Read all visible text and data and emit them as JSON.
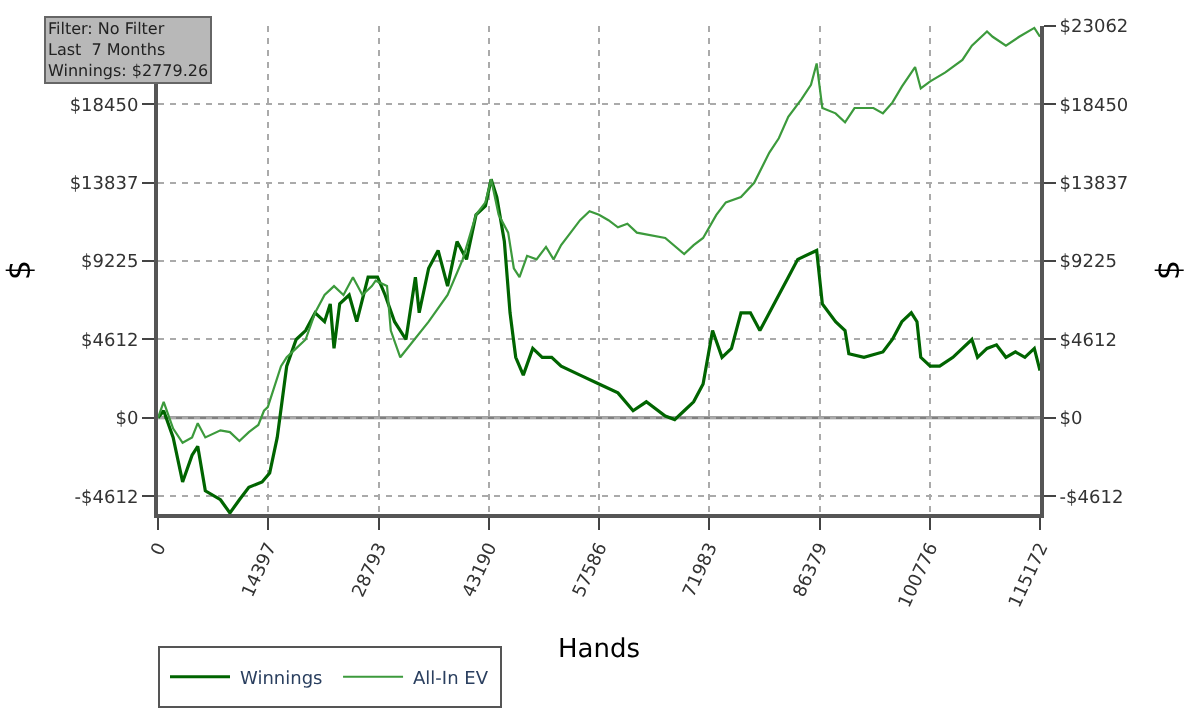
{
  "chart_data": {
    "type": "line",
    "xlabel": "Hands",
    "ylabel": "$",
    "y2label": "$",
    "annotations": [
      "Filter: No Filter",
      "Last  7 Months",
      "Winnings: $2779.26"
    ],
    "xlim": [
      0,
      115172
    ],
    "xticks": [
      0,
      14397,
      28793,
      43190,
      57586,
      71983,
      86379,
      100776,
      115172
    ],
    "ylim": [
      -5660,
      23062
    ],
    "yticks": [
      {
        "value": -4612,
        "label": "-$4612"
      },
      {
        "value": 0,
        "label": "$0"
      },
      {
        "value": 4612,
        "label": "$4612"
      },
      {
        "value": 9225,
        "label": "$9225"
      },
      {
        "value": 13837,
        "label": "$13837"
      },
      {
        "value": 18450,
        "label": "$18450"
      }
    ],
    "y2lim": [
      -5660,
      23062
    ],
    "y2ticks": [
      {
        "value": -4612,
        "label": "-$4612"
      },
      {
        "value": 0,
        "label": "$0"
      },
      {
        "value": 4612,
        "label": "$4612"
      },
      {
        "value": 9225,
        "label": "$9225"
      },
      {
        "value": 13837,
        "label": "$13837"
      },
      {
        "value": 18450,
        "label": "$18450"
      },
      {
        "value": 23062,
        "label": "$23062"
      }
    ],
    "grid": true,
    "legend": "bottom left",
    "marker": "none",
    "line_style": "solid",
    "ref_lines": [
      {
        "axis": "y",
        "value": 0,
        "color": "#808080"
      }
    ],
    "series": [
      {
        "name": "Winnings",
        "color": "#006400",
        "x": [
          0,
          741,
          1977,
          3213,
          4449,
          5190,
          6179,
          8156,
          9392,
          10628,
          11863,
          13593,
          14582,
          15570,
          16806,
          18042,
          19278,
          20513,
          21749,
          22491,
          22985,
          23726,
          24962,
          25951,
          27434,
          28669,
          29658,
          30894,
          32377,
          33612,
          34107,
          35342,
          36578,
          37814,
          39050,
          40285,
          41521,
          42757,
          43498,
          44240,
          45228,
          45970,
          46711,
          47700,
          48936,
          50171,
          51407,
          52643,
          55114,
          57586,
          60057,
          62035,
          63765,
          66236,
          67472,
          68708,
          69943,
          71179,
          72415,
          73651,
          74886,
          76122,
          77358,
          78594,
          81065,
          82301,
          83537,
          86008,
          86750,
          88480,
          89715,
          90210,
          92187,
          94658,
          95894,
          97130,
          98366,
          99107,
          99601,
          100837,
          102073,
          103803,
          105039,
          106275,
          107016,
          108252,
          109487,
          110723,
          111959,
          113194,
          114430,
          115172
        ],
        "values": [
          0,
          419,
          -1153,
          -3773,
          -2201,
          -1677,
          -4297,
          -4821,
          -5600,
          -4821,
          -4087,
          -3773,
          -3249,
          -1153,
          3039,
          4611,
          5135,
          6183,
          5659,
          6707,
          4087,
          6707,
          7231,
          5659,
          8279,
          8279,
          7231,
          5659,
          4611,
          8279,
          6183,
          8803,
          9851,
          7755,
          10375,
          9327,
          11947,
          12471,
          14043,
          12995,
          10375,
          6183,
          3563,
          2515,
          4087,
          3563,
          3563,
          3039,
          2515,
          1991,
          1467,
          419,
          943,
          105,
          -105,
          419,
          943,
          1991,
          5135,
          3563,
          4087,
          6183,
          6183,
          5135,
          7231,
          8279,
          9327,
          9851,
          6707,
          5659,
          5135,
          3773,
          3563,
          3878,
          4611,
          5659,
          6183,
          5659,
          3563,
          3039,
          3039,
          3563,
          4087,
          4611,
          3563,
          4087,
          4297,
          3563,
          3878,
          3563,
          4087,
          2779
        ]
      },
      {
        "name": "All-In EV",
        "color": "#3c9a3c",
        "x": [
          0,
          741,
          1977,
          3213,
          4449,
          5190,
          6179,
          8156,
          9392,
          10628,
          11863,
          13099,
          13840,
          14335,
          16065,
          16806,
          18042,
          19278,
          20513,
          21749,
          22985,
          24221,
          25456,
          26692,
          27928,
          28422,
          29905,
          30399,
          31635,
          35342,
          37814,
          39791,
          41521,
          42757,
          43498,
          44487,
          45723,
          46464,
          47206,
          48194,
          49430,
          50666,
          51654,
          52643,
          53879,
          55114,
          56350,
          57586,
          58822,
          60057,
          61293,
          62529,
          66236,
          68708,
          69943,
          71179,
          72909,
          74145,
          76122,
          77852,
          79829,
          81065,
          82301,
          84031,
          85267,
          86008,
          86750,
          88480,
          89715,
          90951,
          93423,
          94658,
          95894,
          97130,
          98860,
          99601,
          100837,
          102814,
          105039,
          106275,
          108252,
          108993,
          110723,
          112453,
          114430,
          115172
        ],
        "values": [
          0,
          943,
          -629,
          -1467,
          -1153,
          -314,
          -1153,
          -734,
          -838,
          -1362,
          -838,
          -419,
          419,
          629,
          3039,
          3563,
          4087,
          4611,
          6183,
          7231,
          7755,
          7231,
          8279,
          7231,
          7755,
          8070,
          7755,
          5135,
          3563,
          5659,
          7231,
          9327,
          11947,
          12681,
          14043,
          11947,
          10899,
          8803,
          8279,
          9537,
          9327,
          10061,
          9327,
          10166,
          10899,
          11633,
          12157,
          11947,
          11633,
          11214,
          11424,
          10899,
          10585,
          9642,
          10166,
          10585,
          11947,
          12681,
          12995,
          13834,
          15615,
          16454,
          17711,
          18759,
          19598,
          20855,
          18235,
          17921,
          17397,
          18235,
          18235,
          17921,
          18550,
          19493,
          20646,
          19388,
          19807,
          20331,
          21065,
          21903,
          22742,
          22428,
          21903,
          22428,
          22951,
          22428
        ]
      }
    ]
  }
}
